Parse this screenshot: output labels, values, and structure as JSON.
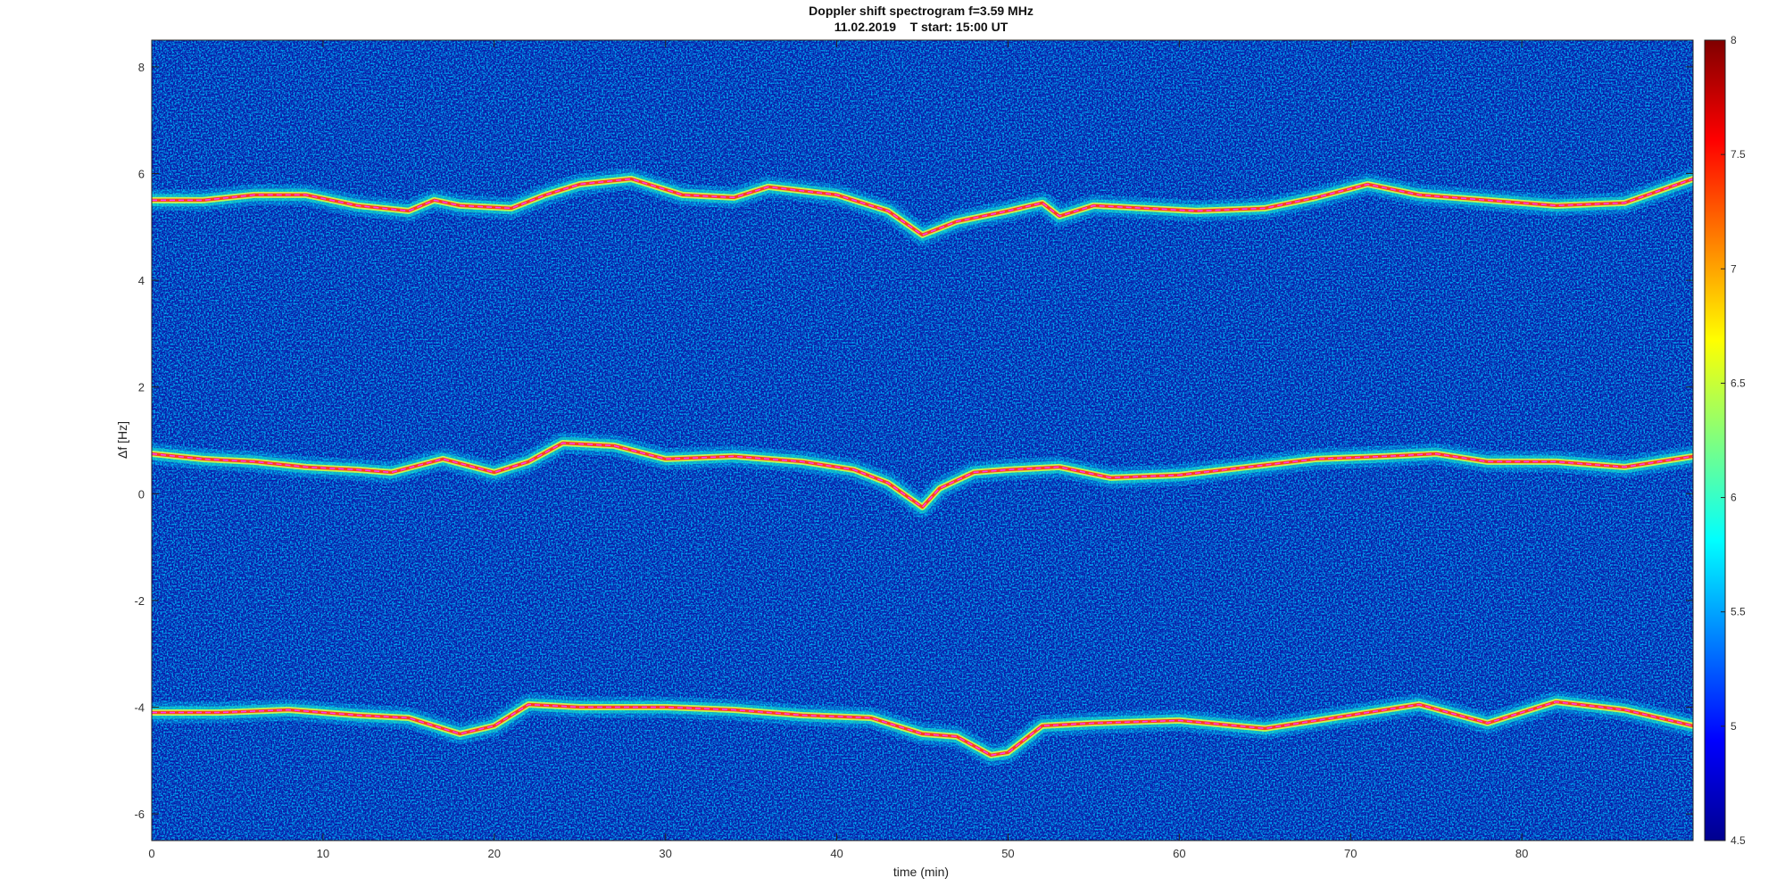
{
  "chart_data": {
    "type": "heatmap",
    "title": "Doppler shift spectrogram f=3.59 MHz",
    "subtitle": "11.02.2019    T start: 15:00 UT",
    "xlabel": "time (min)",
    "ylabel": "Δf [Hz]",
    "xlim": [
      0,
      90
    ],
    "ylim": [
      -6.5,
      8.5
    ],
    "xticks": [
      0,
      10,
      20,
      30,
      40,
      50,
      60,
      70,
      80
    ],
    "yticks": [
      8,
      6,
      4,
      2,
      0,
      -2,
      -4,
      -6
    ],
    "colorbar": {
      "range": [
        4.5,
        8
      ],
      "ticks": [
        8,
        7.5,
        7,
        6.5,
        6,
        5.5,
        5,
        4.5
      ],
      "colormap": "jet"
    },
    "background_color": "#0a1aa8",
    "trace_color": "#ff3df5",
    "traces": [
      {
        "x": [
          0,
          3,
          6,
          9,
          12,
          15,
          16.5,
          18,
          21,
          23,
          25,
          28,
          31,
          34,
          36,
          40,
          43,
          45,
          47,
          50,
          52,
          53,
          55,
          58,
          61,
          65,
          68,
          71,
          74,
          78,
          82,
          86,
          90
        ],
        "y": [
          5.5,
          5.5,
          5.6,
          5.6,
          5.4,
          5.3,
          5.5,
          5.4,
          5.35,
          5.6,
          5.8,
          5.9,
          5.6,
          5.55,
          5.75,
          5.6,
          5.3,
          4.85,
          5.1,
          5.3,
          5.45,
          5.2,
          5.4,
          5.35,
          5.3,
          5.35,
          5.55,
          5.8,
          5.6,
          5.5,
          5.4,
          5.45,
          5.9
        ]
      },
      {
        "x": [
          0,
          3,
          6,
          9,
          12,
          14,
          17,
          20,
          22,
          24,
          27,
          30,
          34,
          38,
          41,
          43,
          45,
          46,
          48,
          50,
          53,
          56,
          60,
          64,
          68,
          72,
          75,
          78,
          82,
          86,
          90
        ],
        "y": [
          0.75,
          0.65,
          0.6,
          0.5,
          0.45,
          0.4,
          0.65,
          0.4,
          0.6,
          0.95,
          0.9,
          0.65,
          0.7,
          0.6,
          0.45,
          0.2,
          -0.25,
          0.1,
          0.4,
          0.45,
          0.5,
          0.3,
          0.35,
          0.5,
          0.65,
          0.7,
          0.75,
          0.6,
          0.6,
          0.5,
          0.7
        ]
      },
      {
        "x": [
          0,
          4,
          8,
          12,
          15,
          18,
          20,
          22,
          25,
          30,
          34,
          38,
          42,
          45,
          47,
          49,
          50,
          52,
          55,
          60,
          65,
          70,
          74,
          78,
          82,
          86,
          90
        ],
        "y": [
          -4.1,
          -4.1,
          -4.05,
          -4.15,
          -4.2,
          -4.5,
          -4.35,
          -3.95,
          -4.0,
          -4.0,
          -4.05,
          -4.15,
          -4.2,
          -4.5,
          -4.55,
          -4.9,
          -4.85,
          -4.35,
          -4.3,
          -4.25,
          -4.4,
          -4.15,
          -3.95,
          -4.3,
          -3.9,
          -4.05,
          -4.35
        ]
      }
    ]
  }
}
